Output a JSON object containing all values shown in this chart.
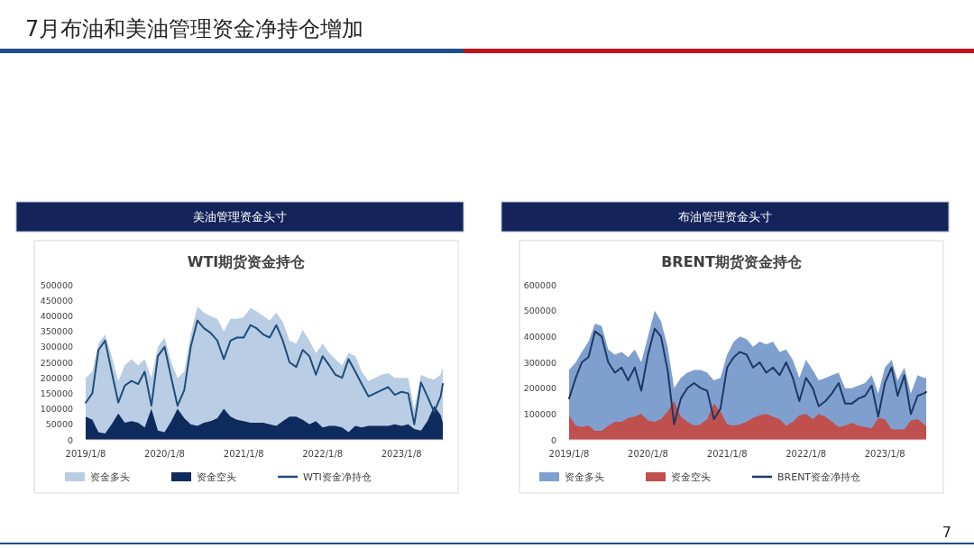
{
  "chart_data": [
    {
      "type": "area",
      "title": "WTI期货资金持仓",
      "subtitle": "美油管理资金头寸",
      "annotations": [
        "7月布油和美油管理资金净持仓增加"
      ],
      "x": [
        "2019-01-08",
        "2019-02-08",
        "2019-03-08",
        "2019-04-08",
        "2019-05-08",
        "2019-06-08",
        "2019-07-08",
        "2019-08-08",
        "2019-09-08",
        "2019-10-08",
        "2019-11-08",
        "2019-12-08",
        "2020-01-08",
        "2020-02-08",
        "2020-03-08",
        "2020-04-08",
        "2020-05-08",
        "2020-06-08",
        "2020-07-08",
        "2020-08-08",
        "2020-09-08",
        "2020-10-08",
        "2020-11-08",
        "2020-12-08",
        "2021-01-08",
        "2021-02-08",
        "2021-03-08",
        "2021-04-08",
        "2021-05-08",
        "2021-06-08",
        "2021-07-08",
        "2021-08-08",
        "2021-09-08",
        "2021-10-08",
        "2021-11-08",
        "2021-12-08",
        "2022-01-08",
        "2022-02-08",
        "2022-03-08",
        "2022-04-08",
        "2022-05-08",
        "2022-06-08",
        "2022-07-08",
        "2022-08-08",
        "2022-09-08",
        "2022-10-08",
        "2022-11-08",
        "2022-12-08",
        "2023-01-08",
        "2023-02-08",
        "2023-03-08",
        "2023-04-08",
        "2023-05-08",
        "2023-06-08",
        "2023-07-08",
        "2023-07-18"
      ],
      "series": [
        {
          "name": "资金多头",
          "type": "area",
          "color": "#b9cde5",
          "values": [
            200000,
            220000,
            310000,
            340000,
            270000,
            190000,
            240000,
            260000,
            240000,
            260000,
            200000,
            300000,
            330000,
            250000,
            200000,
            220000,
            340000,
            430000,
            410000,
            400000,
            390000,
            350000,
            390000,
            390000,
            395000,
            425000,
            415000,
            400000,
            385000,
            410000,
            380000,
            320000,
            310000,
            355000,
            320000,
            280000,
            310000,
            280000,
            260000,
            240000,
            280000,
            270000,
            220000,
            190000,
            200000,
            210000,
            215000,
            200000,
            200000,
            200000,
            100000,
            210000,
            200000,
            195000,
            210000,
            235000
          ]
        },
        {
          "name": "资金空头",
          "type": "area",
          "color": "#0f2b5e",
          "values": [
            75000,
            65000,
            25000,
            20000,
            50000,
            85000,
            55000,
            60000,
            55000,
            40000,
            100000,
            30000,
            25000,
            60000,
            100000,
            70000,
            50000,
            45000,
            55000,
            60000,
            70000,
            100000,
            75000,
            65000,
            60000,
            55000,
            55000,
            55000,
            50000,
            45000,
            60000,
            75000,
            75000,
            65000,
            50000,
            60000,
            40000,
            45000,
            45000,
            40000,
            25000,
            45000,
            40000,
            45000,
            45000,
            45000,
            45000,
            50000,
            45000,
            50000,
            35000,
            30000,
            60000,
            110000,
            80000,
            55000
          ]
        },
        {
          "name": "WTI资金净持仓",
          "type": "line",
          "color": "#1f4e79",
          "values": [
            120000,
            150000,
            290000,
            320000,
            220000,
            120000,
            175000,
            190000,
            180000,
            220000,
            110000,
            270000,
            300000,
            200000,
            110000,
            160000,
            300000,
            385000,
            360000,
            345000,
            320000,
            260000,
            320000,
            330000,
            330000,
            370000,
            360000,
            340000,
            330000,
            370000,
            320000,
            250000,
            235000,
            290000,
            270000,
            210000,
            270000,
            240000,
            210000,
            200000,
            260000,
            220000,
            180000,
            140000,
            150000,
            160000,
            170000,
            145000,
            155000,
            150000,
            50000,
            185000,
            140000,
            90000,
            140000,
            180000
          ]
        }
      ],
      "ylim": [
        0,
        500000
      ],
      "yticks": [
        0,
        50000,
        100000,
        150000,
        200000,
        250000,
        300000,
        350000,
        400000,
        450000,
        500000
      ],
      "xlim": [
        "2019-01-08",
        "2023-07-18"
      ],
      "xticks": [
        {
          "value": "2019-01-08",
          "label": "2019/1/8"
        },
        {
          "value": "2020-01-08",
          "label": "2020/1/8"
        },
        {
          "value": "2021-01-08",
          "label": "2021/1/8"
        },
        {
          "value": "2022-01-08",
          "label": "2022/1/8"
        },
        {
          "value": "2023-01-08",
          "label": "2023/1/8"
        }
      ],
      "grid": false,
      "legend": "bottom"
    },
    {
      "type": "area",
      "title": "BRENT期货资金持仓",
      "subtitle": "布油管理资金头寸",
      "annotations": [
        "7"
      ],
      "x": [
        "2019-01-08",
        "2019-02-08",
        "2019-03-08",
        "2019-04-08",
        "2019-05-08",
        "2019-06-08",
        "2019-07-08",
        "2019-08-08",
        "2019-09-08",
        "2019-10-08",
        "2019-11-08",
        "2019-12-08",
        "2020-01-08",
        "2020-02-08",
        "2020-03-08",
        "2020-04-08",
        "2020-05-08",
        "2020-06-08",
        "2020-07-08",
        "2020-08-08",
        "2020-09-08",
        "2020-10-08",
        "2020-11-08",
        "2020-12-08",
        "2021-01-08",
        "2021-02-08",
        "2021-03-08",
        "2021-04-08",
        "2021-05-08",
        "2021-06-08",
        "2021-07-08",
        "2021-08-08",
        "2021-09-08",
        "2021-10-08",
        "2021-11-08",
        "2021-12-08",
        "2022-01-08",
        "2022-02-08",
        "2022-03-08",
        "2022-04-08",
        "2022-05-08",
        "2022-06-08",
        "2022-07-08",
        "2022-08-08",
        "2022-09-08",
        "2022-10-08",
        "2022-11-08",
        "2022-12-08",
        "2023-01-08",
        "2023-02-08",
        "2023-03-08",
        "2023-04-08",
        "2023-05-08",
        "2023-06-08",
        "2023-07-08",
        "2023-07-18"
      ],
      "series": [
        {
          "name": "资金多头",
          "type": "area",
          "color": "#7f9fcf",
          "values": [
            270000,
            300000,
            340000,
            380000,
            450000,
            440000,
            350000,
            330000,
            340000,
            320000,
            350000,
            300000,
            400000,
            500000,
            460000,
            360000,
            200000,
            240000,
            260000,
            270000,
            270000,
            260000,
            230000,
            240000,
            330000,
            380000,
            400000,
            390000,
            360000,
            380000,
            370000,
            380000,
            340000,
            350000,
            310000,
            240000,
            310000,
            270000,
            230000,
            240000,
            250000,
            260000,
            200000,
            200000,
            210000,
            220000,
            250000,
            180000,
            280000,
            310000,
            230000,
            280000,
            180000,
            250000,
            240000,
            240000
          ]
        },
        {
          "name": "资金空头",
          "type": "area",
          "color": "#c0504d",
          "values": [
            95000,
            55000,
            50000,
            55000,
            35000,
            35000,
            55000,
            70000,
            70000,
            85000,
            90000,
            100000,
            75000,
            70000,
            80000,
            110000,
            150000,
            90000,
            70000,
            55000,
            60000,
            80000,
            140000,
            110000,
            60000,
            55000,
            60000,
            70000,
            85000,
            95000,
            100000,
            90000,
            80000,
            55000,
            70000,
            95000,
            100000,
            80000,
            100000,
            90000,
            70000,
            50000,
            55000,
            65000,
            55000,
            50000,
            45000,
            85000,
            80000,
            40000,
            40000,
            40000,
            75000,
            80000,
            60000,
            55000
          ]
        },
        {
          "name": "BRENT资金净持仓",
          "type": "line",
          "color": "#1f3864",
          "values": [
            160000,
            240000,
            300000,
            320000,
            420000,
            400000,
            300000,
            260000,
            280000,
            230000,
            280000,
            190000,
            330000,
            430000,
            400000,
            270000,
            60000,
            160000,
            200000,
            220000,
            200000,
            190000,
            80000,
            120000,
            280000,
            320000,
            340000,
            330000,
            280000,
            300000,
            260000,
            280000,
            250000,
            300000,
            240000,
            150000,
            240000,
            200000,
            130000,
            150000,
            180000,
            220000,
            140000,
            140000,
            160000,
            170000,
            210000,
            90000,
            220000,
            280000,
            170000,
            250000,
            100000,
            170000,
            180000,
            185000
          ]
        }
      ],
      "ylim": [
        0,
        600000
      ],
      "yticks": [
        0,
        100000,
        200000,
        300000,
        400000,
        500000,
        600000
      ],
      "xlim": [
        "2019-01-08",
        "2023-07-18"
      ],
      "xticks": [
        {
          "value": "2019-01-08",
          "label": "2019/1/8"
        },
        {
          "value": "2020-01-08",
          "label": "2020/1/8"
        },
        {
          "value": "2021-01-08",
          "label": "2021/1/8"
        },
        {
          "value": "2022-01-08",
          "label": "2022/1/8"
        },
        {
          "value": "2023-01-08",
          "label": "2023/1/8"
        }
      ],
      "grid": false,
      "legend": "bottom"
    }
  ]
}
